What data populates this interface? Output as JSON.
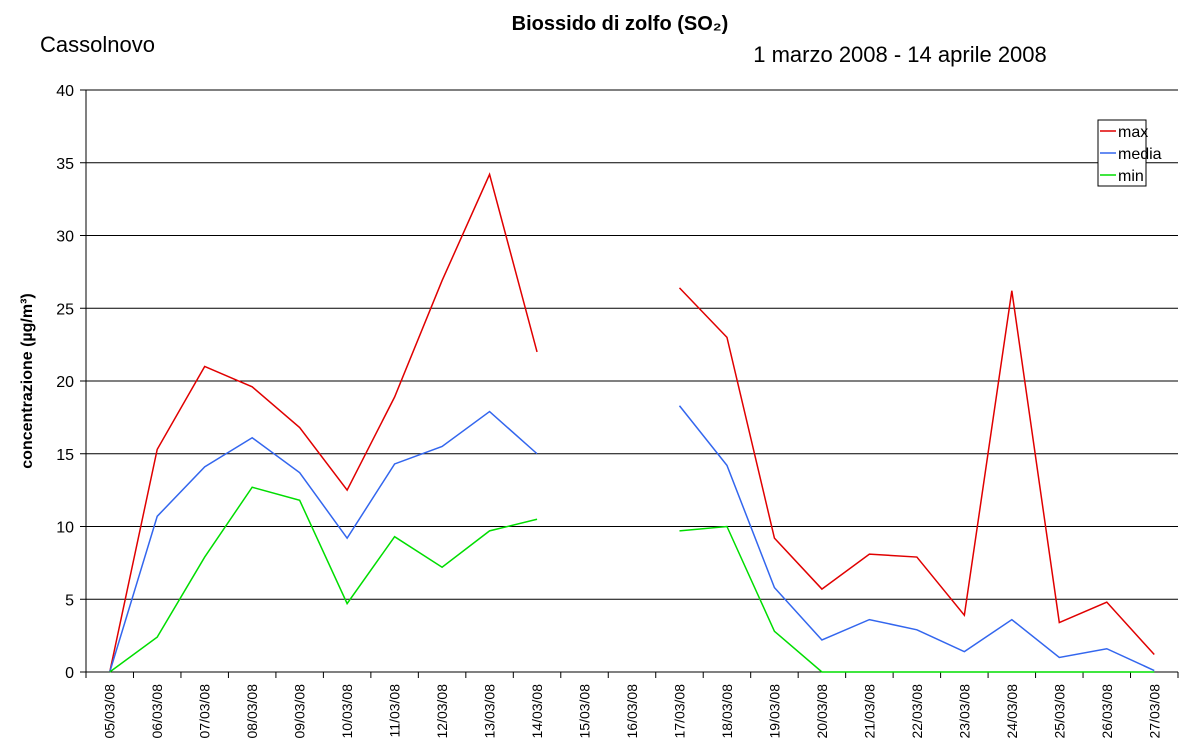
{
  "chart_data": {
    "type": "line",
    "title": "Biossido di zolfo (SO₂)",
    "subtitle": "1 marzo 2008 - 14 aprile 2008",
    "location": "Cassolnovo",
    "y_label": "concentrazione (µg/m³)",
    "categories": [
      "05/03/08",
      "06/03/08",
      "07/03/08",
      "08/03/08",
      "09/03/08",
      "10/03/08",
      "11/03/08",
      "12/03/08",
      "13/03/08",
      "14/03/08",
      "15/03/08",
      "16/03/08",
      "17/03/08",
      "18/03/08",
      "19/03/08",
      "20/03/08",
      "21/03/08",
      "22/03/08",
      "23/03/08",
      "24/03/08",
      "25/03/08",
      "26/03/08",
      "27/03/08"
    ],
    "series": [
      {
        "name": "max",
        "color": "#e00000",
        "values": [
          0,
          15.3,
          21,
          19.6,
          16.8,
          12.5,
          18.9,
          26.9,
          34.2,
          22,
          null,
          null,
          26.4,
          23,
          9.2,
          5.7,
          8.1,
          7.9,
          3.9,
          26.2,
          3.4,
          4.8,
          1.2
        ]
      },
      {
        "name": "media",
        "color": "#3366ee",
        "values": [
          0,
          10.7,
          14.1,
          16.1,
          13.7,
          9.2,
          14.3,
          15.5,
          17.9,
          15,
          null,
          null,
          18.3,
          14.2,
          5.8,
          2.2,
          3.6,
          2.9,
          1.4,
          3.6,
          1.0,
          1.6,
          0.1
        ]
      },
      {
        "name": "min",
        "color": "#00dd00",
        "values": [
          0,
          2.4,
          7.9,
          12.7,
          11.8,
          4.7,
          9.3,
          7.2,
          9.7,
          10.5,
          null,
          null,
          9.7,
          10,
          2.8,
          0,
          0,
          0,
          0,
          0,
          0,
          0,
          0
        ]
      }
    ],
    "ylim": [
      0,
      40
    ],
    "yticks": [
      0,
      5,
      10,
      15,
      20,
      25,
      30,
      35,
      40
    ],
    "grid": true,
    "legend": "top-right"
  }
}
